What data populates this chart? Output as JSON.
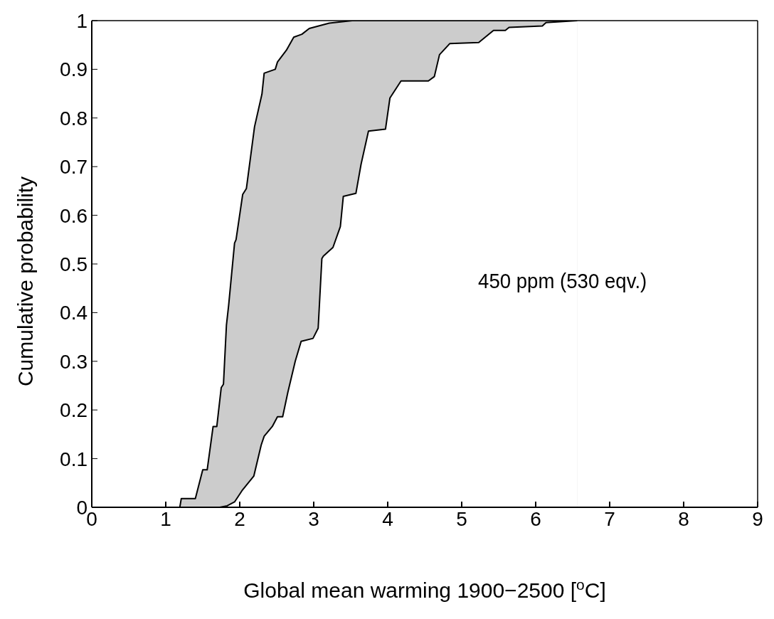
{
  "chart_data": {
    "type": "area",
    "xlabel": "Global mean warming 1900−2500 [$^{o}$C]",
    "ylabel": "Cumulative probability",
    "annotations": [
      "450 ppm (530 eqv.)"
    ],
    "series": [
      {
        "color": "#cccccc",
        "x": [
          0.41,
          1.19,
          1.21,
          1.4,
          1.5,
          1.56,
          1.64,
          1.69,
          1.75,
          1.78,
          1.82,
          1.85,
          1.93,
          1.95,
          2.04,
          2.09,
          2.2,
          2.3,
          2.33,
          2.48,
          2.51,
          2.63,
          2.73,
          2.84,
          2.94,
          3.21,
          3.52,
          6.56
        ],
        "values": [
          0,
          0,
          0.018,
          0.018,
          0.077,
          0.077,
          0.166,
          0.166,
          0.246,
          0.253,
          0.374,
          0.415,
          0.543,
          0.55,
          0.643,
          0.655,
          0.782,
          0.849,
          0.892,
          0.9,
          0.915,
          0.939,
          0.966,
          0.972,
          0.984,
          0.995,
          1,
          1
        ]
      },
      {
        "color": "#ffffff",
        "x": [
          1.73,
          1.83,
          1.93,
          2.03,
          2.19,
          2.29,
          2.33,
          2.44,
          2.51,
          2.58,
          2.65,
          2.75,
          2.83,
          2.99,
          3.06,
          3.11,
          3.13,
          3.26,
          3.36,
          3.4,
          3.57,
          3.64,
          3.74,
          3.97,
          4.03,
          4.18,
          4.55,
          4.63,
          4.7,
          4.84,
          5.23,
          5.43,
          5.59,
          5.64,
          6.09,
          6.14,
          6.56
        ],
        "values": [
          0,
          0.003,
          0.011,
          0.034,
          0.064,
          0.128,
          0.146,
          0.166,
          0.186,
          0.186,
          0.236,
          0.3,
          0.341,
          0.347,
          0.368,
          0.511,
          0.516,
          0.534,
          0.577,
          0.639,
          0.645,
          0.705,
          0.773,
          0.777,
          0.841,
          0.876,
          0.876,
          0.885,
          0.93,
          0.953,
          0.955,
          0.98,
          0.98,
          0.986,
          0.989,
          0.996,
          1
        ]
      }
    ],
    "xlim": [
      0,
      9
    ],
    "xticks": [
      0,
      1,
      2,
      3,
      4,
      5,
      6,
      7,
      8,
      9
    ],
    "ylim": [
      0,
      1
    ],
    "yticks": [
      0,
      0.1,
      0.2,
      0.3,
      0.4,
      0.5,
      0.6,
      0.7,
      0.8,
      0.9,
      1
    ],
    "grid": false
  }
}
